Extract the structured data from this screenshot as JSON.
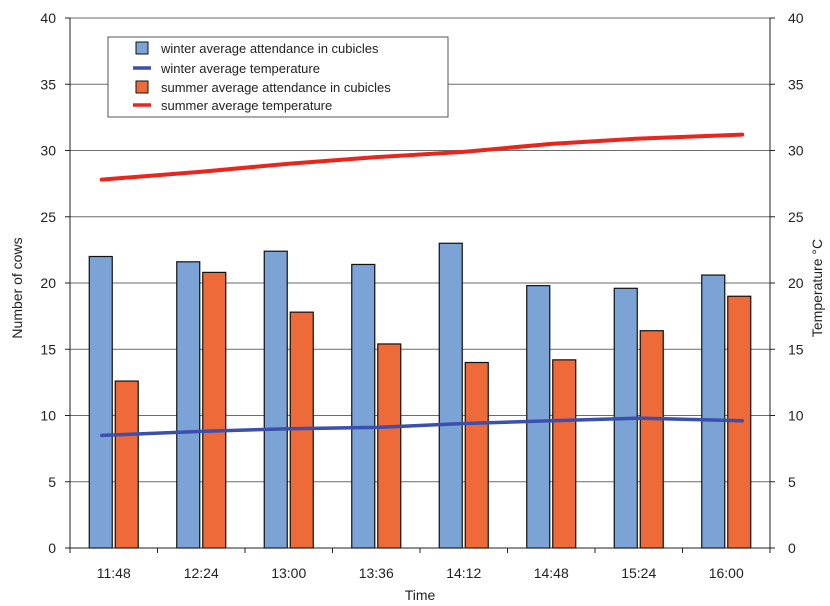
{
  "chart_data": {
    "type": "bar",
    "categories": [
      "11:48",
      "12:24",
      "13:00",
      "13:36",
      "14:12",
      "14:48",
      "15:24",
      "16:00"
    ],
    "xlabel": "Time",
    "ylabel": "Number of cows",
    "y2label": "Temperature °C",
    "ylim": [
      0,
      40
    ],
    "y2lim": [
      0,
      40
    ],
    "yticks": [
      0,
      5,
      10,
      15,
      20,
      25,
      30,
      35,
      40
    ],
    "grid": true,
    "legend_position": "top-left",
    "series": [
      {
        "name": "winter average attendance in cubicles",
        "kind": "bar",
        "axis": "left",
        "color": "#7ba3d6",
        "values": [
          22.0,
          21.6,
          22.4,
          21.4,
          23.0,
          19.8,
          19.6,
          20.6
        ]
      },
      {
        "name": "summer average attendance in cubicles",
        "kind": "bar",
        "axis": "left",
        "color": "#ee6a38",
        "values": [
          12.6,
          20.8,
          17.8,
          15.4,
          14.0,
          14.2,
          16.4,
          19.0
        ]
      },
      {
        "name": "winter average temperature",
        "kind": "line",
        "axis": "right",
        "color": "#3a4fb0",
        "values": [
          8.5,
          8.8,
          9.0,
          9.1,
          9.4,
          9.6,
          9.8,
          9.6
        ]
      },
      {
        "name": "summer average temperature",
        "kind": "line",
        "axis": "right",
        "color": "#e8261c",
        "values": [
          27.8,
          28.4,
          29.0,
          29.5,
          29.9,
          30.5,
          30.9,
          31.2
        ]
      }
    ],
    "legend_order": [
      "winter average attendance in cubicles",
      "winter average temperature",
      "summer average attendance in cubicles",
      "summer average temperature"
    ]
  }
}
